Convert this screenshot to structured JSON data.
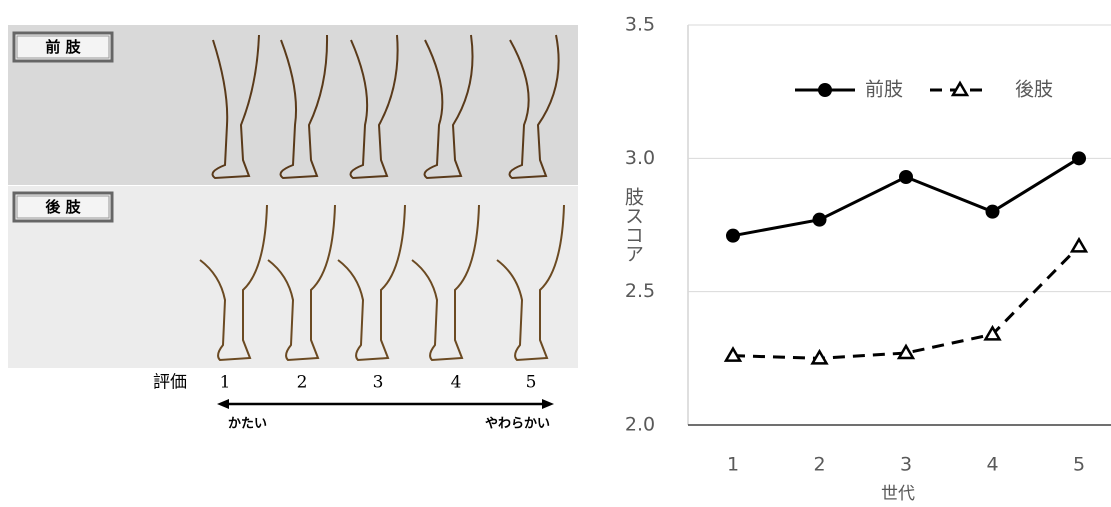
{
  "panel": {
    "front_label": "前 肢",
    "hind_label": "後 肢",
    "rating_label": "評価",
    "ratings": [
      1,
      2,
      3,
      4,
      5
    ],
    "left_end": "かたい",
    "right_end": "やわらかい"
  },
  "chart_data": {
    "type": "line",
    "categories": [
      "1",
      "2",
      "3",
      "4",
      "5"
    ],
    "x_label": "世代",
    "y_label": "肢スコア",
    "series": [
      {
        "name": "前肢",
        "color": "#000000",
        "line_style": "solid",
        "marker": "circle",
        "values": [
          2.71,
          2.77,
          2.93,
          2.8,
          3.0
        ]
      },
      {
        "name": "後肢",
        "color": "#000000",
        "line_style": "dashed",
        "marker": "triangle",
        "values": [
          2.26,
          2.25,
          2.27,
          2.34,
          2.67
        ]
      }
    ],
    "ylim": [
      2.0,
      3.5
    ],
    "yticks": [
      {
        "value": 2.0,
        "label": "2.0"
      },
      2.5,
      {
        "value": 3.0,
        "label": "3.0"
      },
      3.5
    ],
    "grid": true,
    "legend": "top"
  }
}
